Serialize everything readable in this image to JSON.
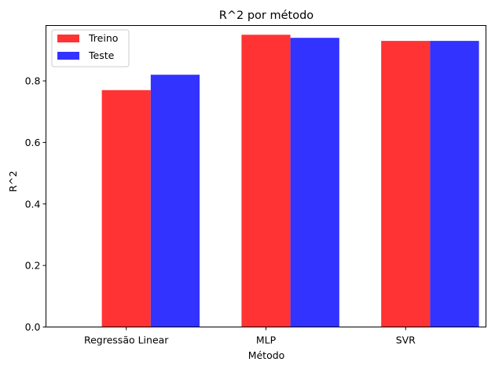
{
  "chart_data": {
    "type": "bar",
    "title": "R^2 por método",
    "xlabel": "Método",
    "ylabel": "R^2",
    "categories": [
      "Regressão Linear",
      "MLP",
      "SVR"
    ],
    "series": [
      {
        "name": "Treino",
        "color": "#ff3333",
        "values": [
          0.77,
          0.95,
          0.93
        ]
      },
      {
        "name": "Teste",
        "color": "#3333ff",
        "values": [
          0.82,
          0.94,
          0.93
        ]
      }
    ],
    "ylim": [
      0,
      0.98
    ],
    "yticks": [
      0.0,
      0.2,
      0.4,
      0.6,
      0.8
    ],
    "ytick_labels": [
      "0.0",
      "0.2",
      "0.4",
      "0.6",
      "0.8"
    ],
    "grid": false,
    "legend_position": "top-left"
  }
}
